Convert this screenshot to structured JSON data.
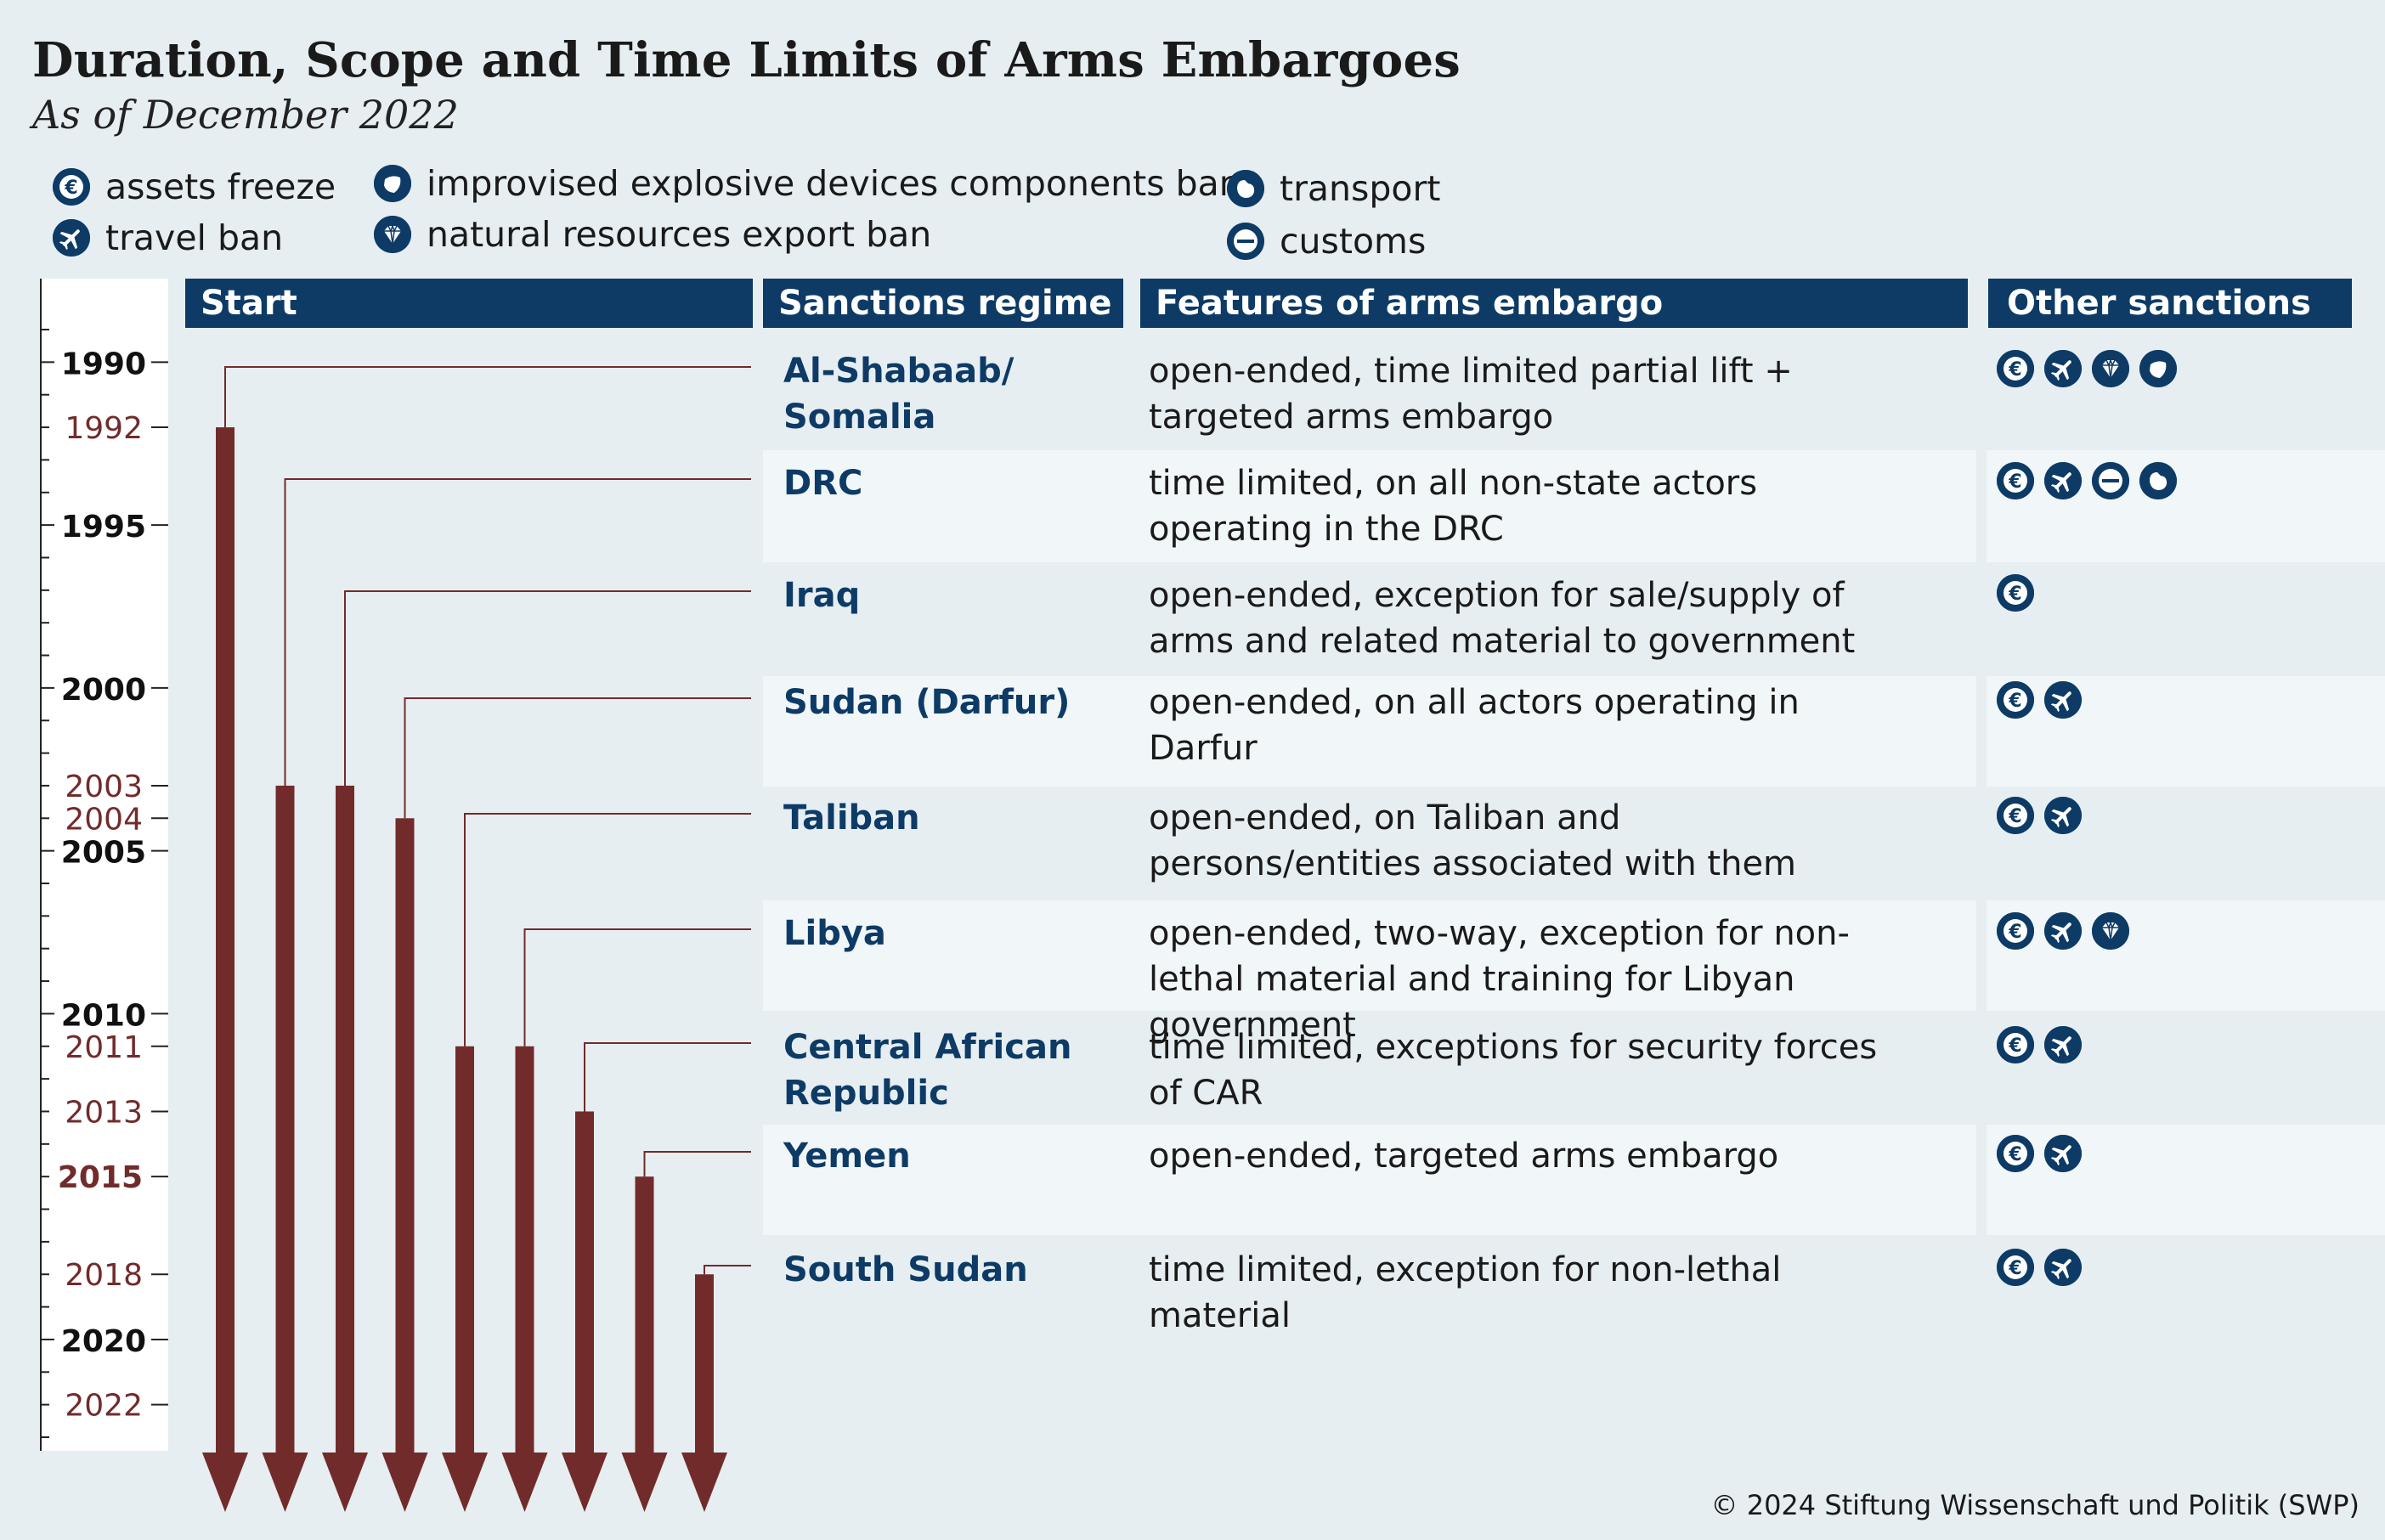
{
  "title": "Duration, Scope and Time Limits of Arms Embargoes",
  "subtitle": "As of December 2022",
  "legend": {
    "assets_freeze": "assets freeze",
    "travel_ban": "travel ban",
    "ied_ban": "improvised explosive devices components ban",
    "natural_resources": "natural resources export ban",
    "transport": "transport",
    "customs": "customs"
  },
  "headers": {
    "start": "Start",
    "regime": "Sanctions regime",
    "features": "Features of arms embargo",
    "other": "Other sanctions"
  },
  "colors": {
    "navy": "#0d3b66",
    "arrow": "#722b2b",
    "row_alt": "#f1f6f8",
    "background": "#e6eef1"
  },
  "chart_data": {
    "type": "timeline",
    "axis": {
      "min": 1989,
      "max": 2023,
      "major_ticks": [
        "1990",
        "1995",
        "2000",
        "2005",
        "2010",
        "2020"
      ],
      "highlighted_ticks": [
        "1992",
        "2003",
        "2004",
        "2011",
        "2013",
        "2015",
        "2018",
        "2022"
      ]
    },
    "regimes": [
      {
        "name": "Al-Shabaab/\nSomalia",
        "start": 1992,
        "features": "open-ended, time limited partial lift + targeted arms embargo",
        "other": [
          "euro",
          "plane",
          "diamond",
          "ied"
        ]
      },
      {
        "name": "DRC",
        "start": 2003,
        "features": "time limited, on all non-state actors operating in the DRC",
        "other": [
          "euro",
          "plane",
          "customs",
          "transport"
        ]
      },
      {
        "name": "Iraq",
        "start": 2003,
        "features": "open-ended, exception for sale/supply of arms and related material to government",
        "other": [
          "euro"
        ]
      },
      {
        "name": "Sudan (Darfur)",
        "start": 2004,
        "features": "open-ended, on all actors operating in Darfur",
        "other": [
          "euro",
          "plane"
        ]
      },
      {
        "name": "Taliban",
        "start": 2011,
        "features": "open-ended, on Taliban and persons/entities associated with them",
        "other": [
          "euro",
          "plane"
        ]
      },
      {
        "name": "Libya",
        "start": 2011,
        "features": "open-ended, two-way, exception for non-lethal material and training for Libyan government",
        "other": [
          "euro",
          "plane",
          "diamond"
        ]
      },
      {
        "name": "Central African\nRepublic",
        "start": 2013,
        "features": "time limited, exceptions for security forces of CAR",
        "other": [
          "euro",
          "plane"
        ]
      },
      {
        "name": "Yemen",
        "start": 2015,
        "features": "open-ended, targeted arms embargo",
        "other": [
          "euro",
          "plane"
        ]
      },
      {
        "name": "South Sudan",
        "start": 2018,
        "features": "time limited, exception for non-lethal material",
        "other": [
          "euro",
          "plane"
        ]
      }
    ]
  },
  "copyright": "© 2024 Stiftung Wissenschaft und Politik (SWP)"
}
